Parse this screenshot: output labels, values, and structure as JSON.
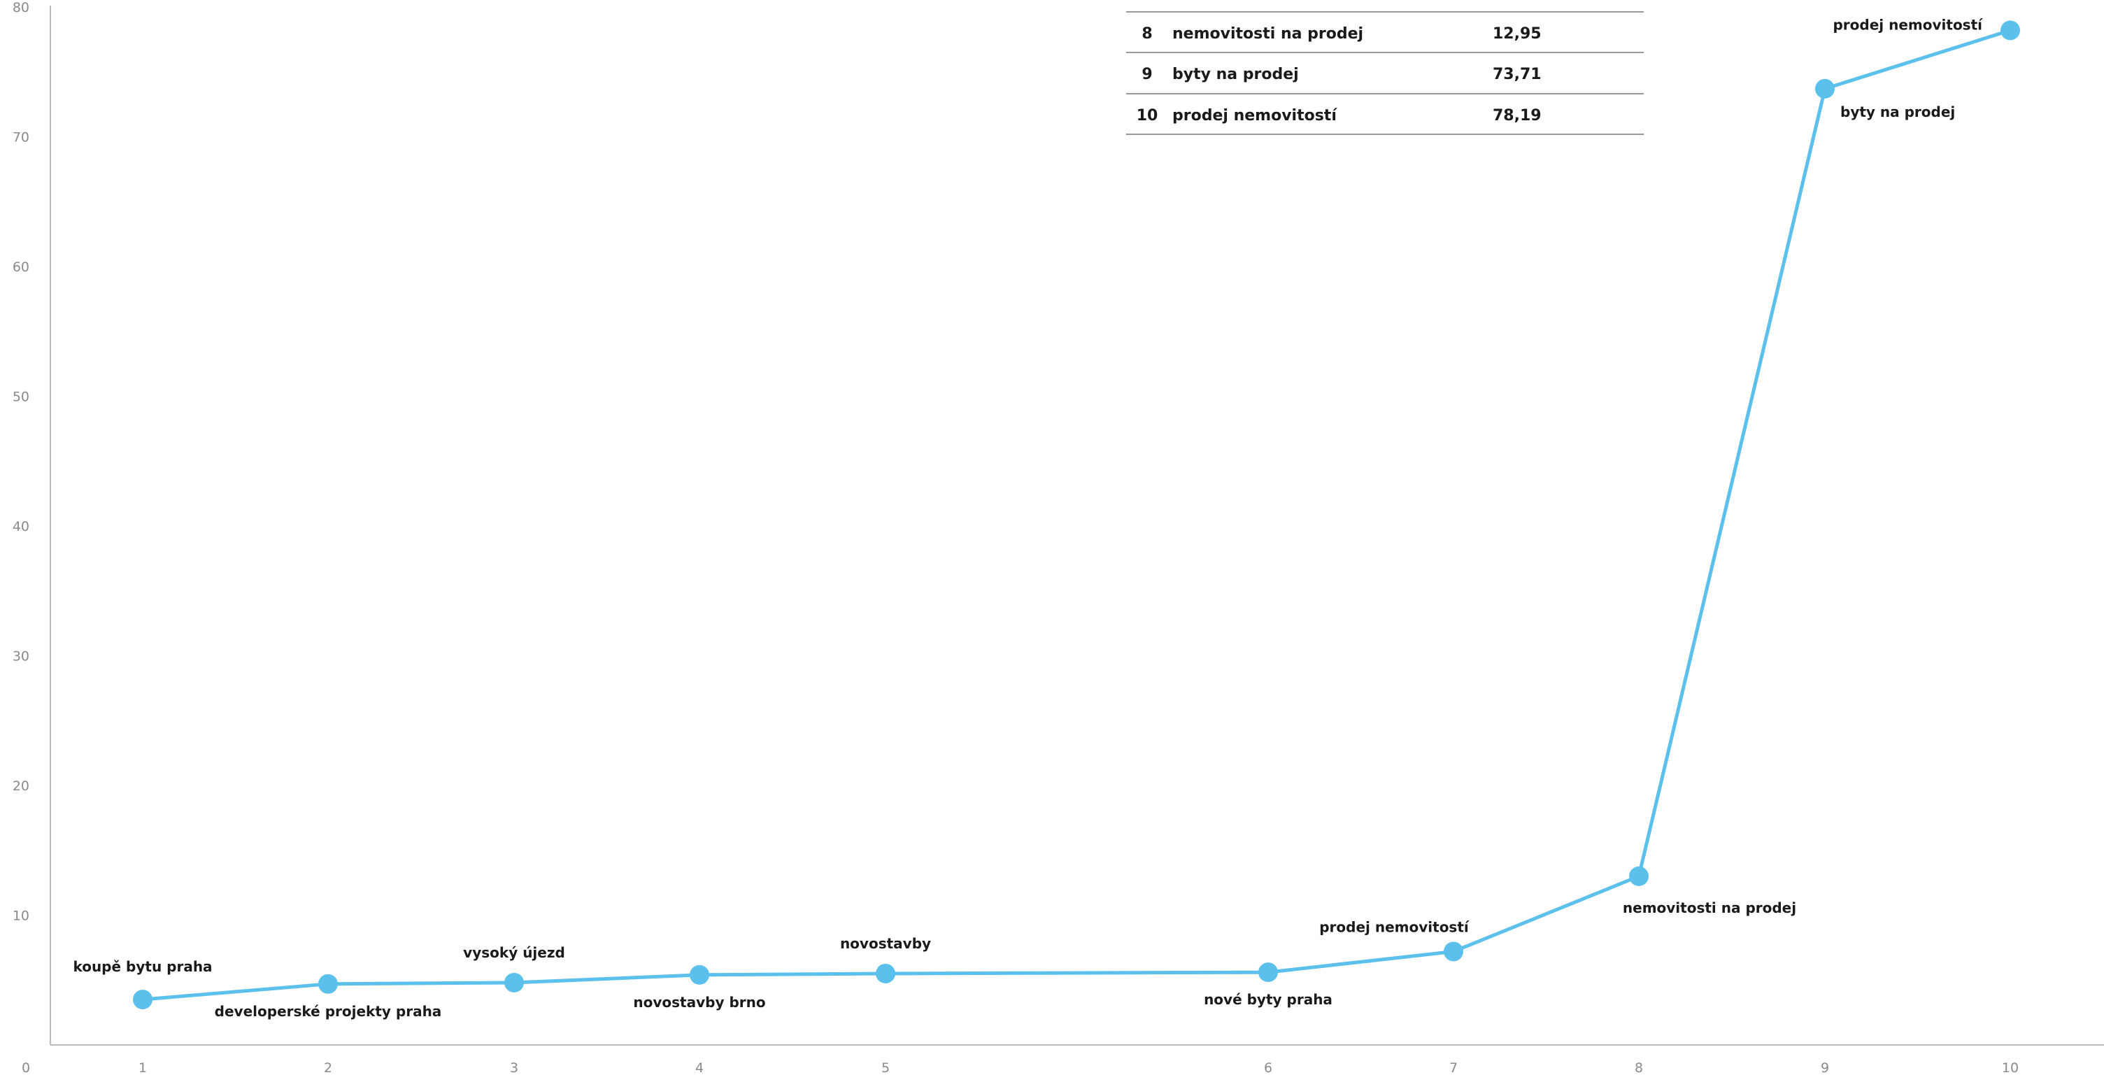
{
  "chart_data": {
    "type": "line",
    "title": "",
    "xlabel": "",
    "ylabel": "",
    "x": [
      1,
      2,
      3,
      4,
      5,
      6,
      7,
      8,
      9,
      10
    ],
    "xlim": [
      0,
      10.5
    ],
    "ylim": [
      0,
      80
    ],
    "y_ticks": [
      10,
      20,
      30,
      40,
      50,
      60,
      70,
      80
    ],
    "x_tick_labels": [
      "0",
      "1",
      "2",
      "3",
      "4",
      "5",
      "6",
      "7",
      "8",
      "9",
      "10"
    ],
    "series": [
      {
        "values": [
          3.5,
          4.7,
          4.8,
          5.4,
          5.5,
          5.6,
          7.2,
          13.0,
          73.7,
          78.2
        ],
        "point_labels": [
          "koupě bytu praha",
          "developerské projekty praha",
          "vysoký újezd",
          "novostavby brno",
          "novostavby",
          "nové byty praha",
          "prodej nemovitostí",
          "nemovitosti na prodej",
          "byty na prodej",
          "prodej nemovitostí"
        ],
        "label_positions": [
          "above",
          "below",
          "above",
          "below",
          "above",
          "below",
          "above",
          "below",
          "below",
          "above"
        ]
      }
    ],
    "grid": false,
    "colors": {
      "line": "#5bc0eb",
      "axis": "#bbbbbb",
      "text": "#1a1a1a",
      "tick": "#8a8a8a"
    },
    "table": {
      "rows": [
        {
          "rank": "8",
          "keyword": "nemovitosti na prodej",
          "value": "12,95"
        },
        {
          "rank": "9",
          "keyword": "byty na prodej",
          "value": "73,71"
        },
        {
          "rank": "10",
          "keyword": "prodej nemovitostí",
          "value": "78,19"
        }
      ]
    }
  }
}
